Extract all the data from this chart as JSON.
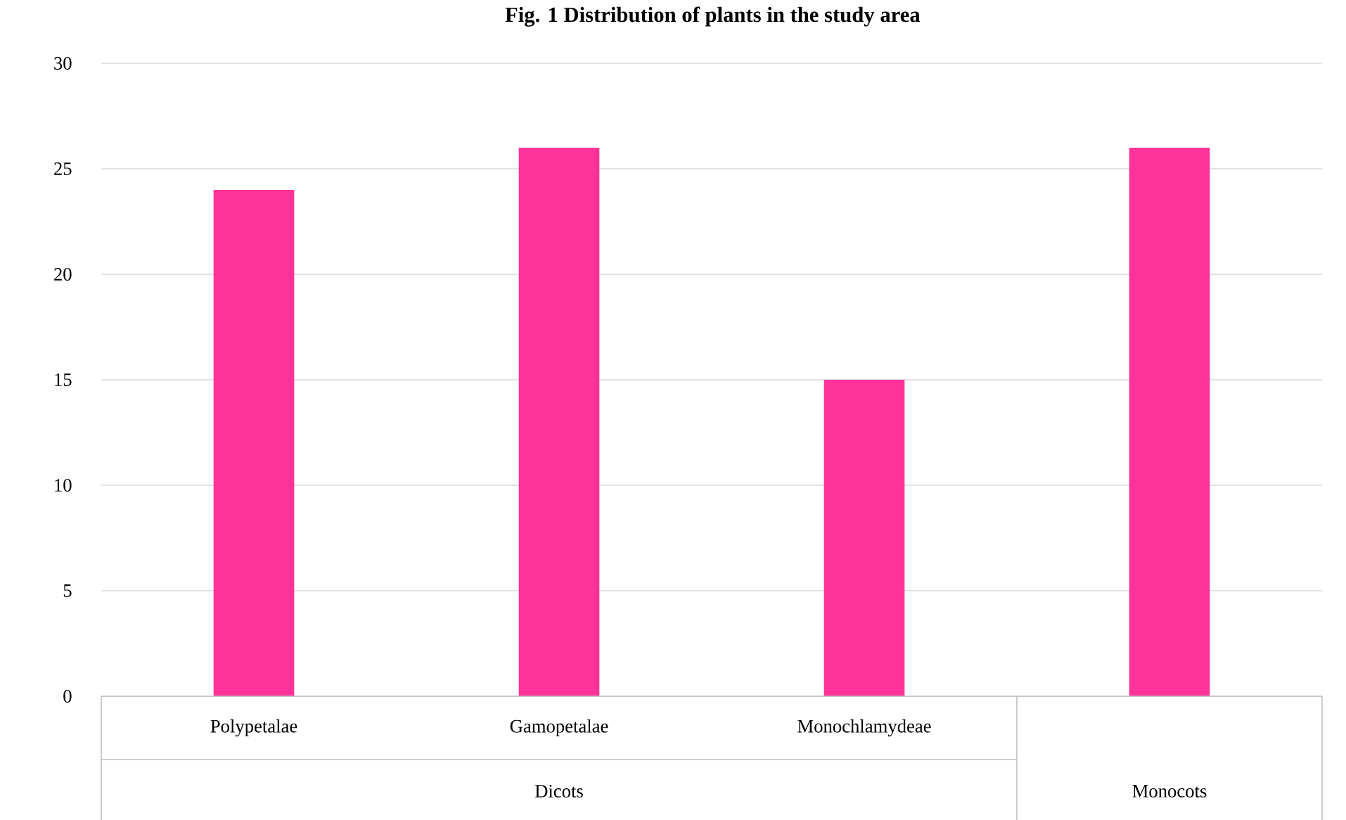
{
  "chart_data": {
    "type": "bar",
    "title": "Fig. 1 Distribution of plants in the study area",
    "categories": [
      "Polypetalae",
      "Gamopetalae",
      "Monochlamydeae",
      null
    ],
    "values": [
      24,
      26,
      15,
      26
    ],
    "color": "#ff3399",
    "ylim": [
      0,
      30
    ],
    "yticks": [
      0,
      5,
      10,
      15,
      20,
      25,
      30
    ],
    "grid": "y",
    "annotations": [
      "Dicots",
      "Monocots"
    ]
  }
}
